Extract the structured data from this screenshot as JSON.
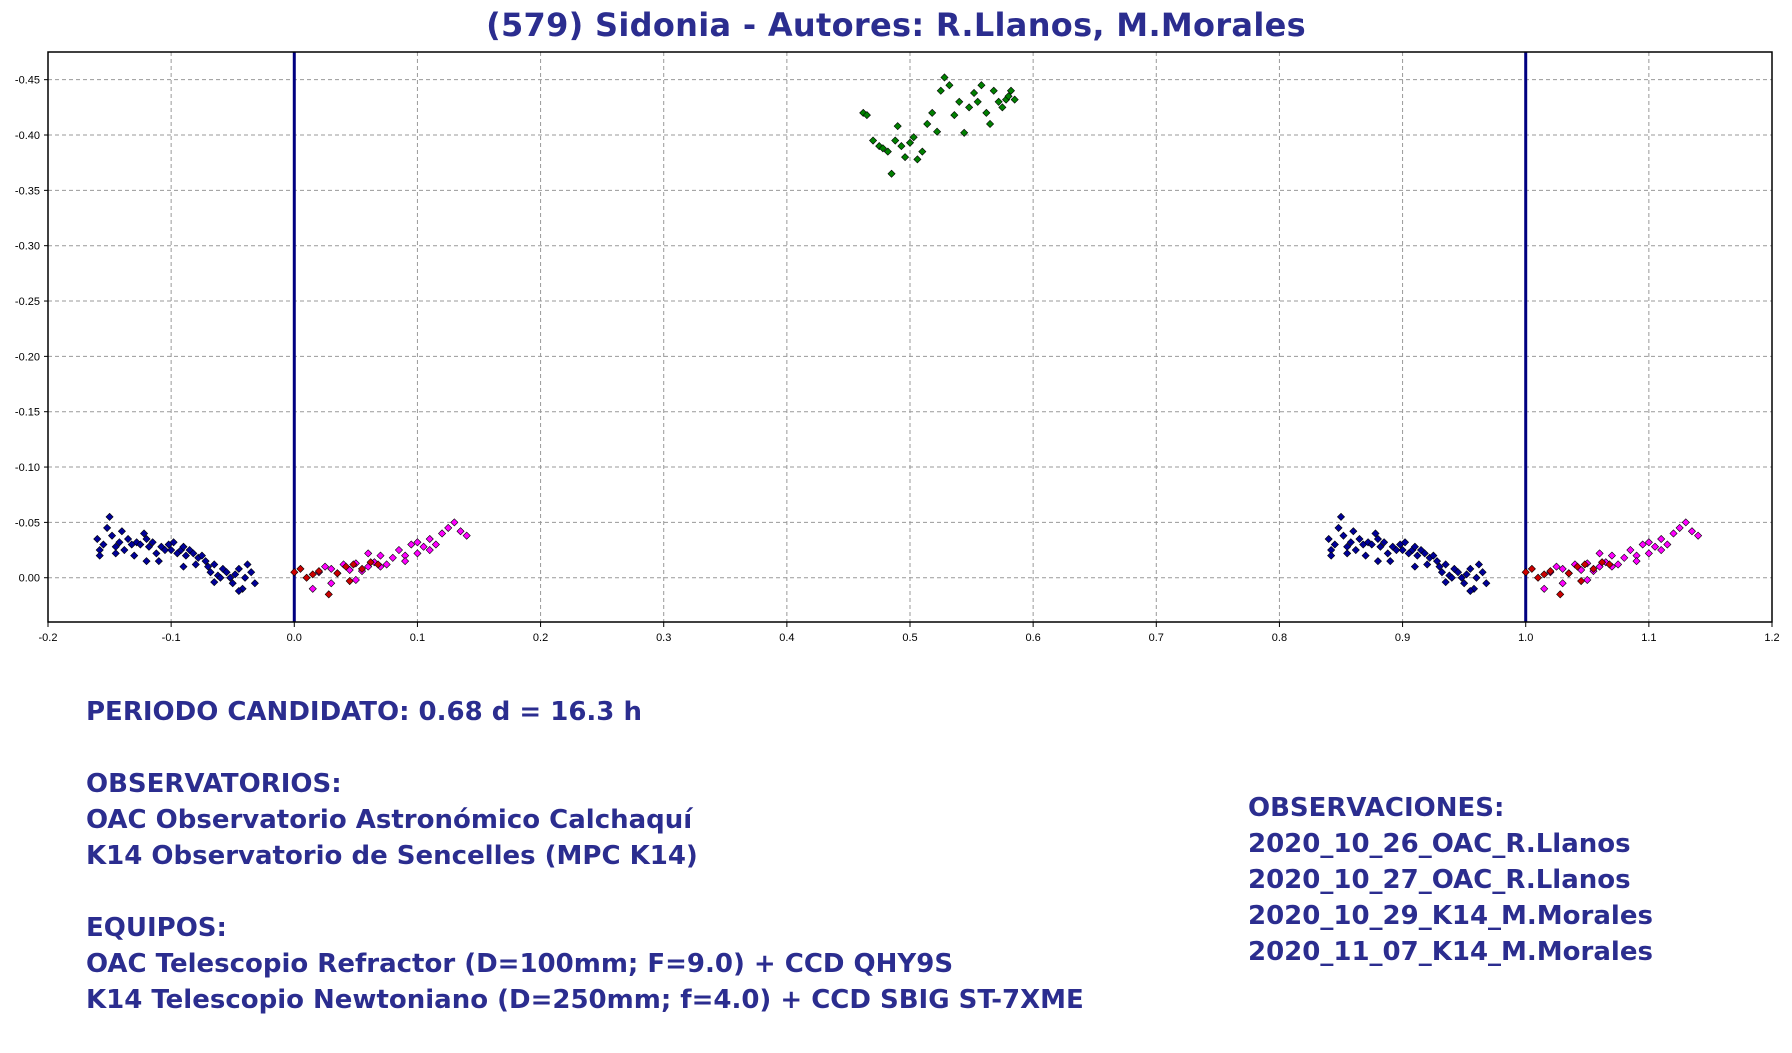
{
  "chart_data": {
    "type": "scatter",
    "title": "(579) Sidonia - Autores: R.Llanos, M.Morales",
    "xlabel": "",
    "ylabel": "",
    "xlim": [
      -0.2,
      1.2
    ],
    "ylim": [
      -0.475,
      0.04
    ],
    "y_inverted": true,
    "grid": true,
    "x_ticks": [
      "-0.2",
      "-0.1",
      "0.0",
      "0.1",
      "0.2",
      "0.3",
      "0.4",
      "0.5",
      "0.6",
      "0.7",
      "0.8",
      "0.9",
      "1.0",
      "1.1",
      "1.2"
    ],
    "y_ticks": [
      "-0.45",
      "-0.40",
      "-0.35",
      "-0.30",
      "-0.25",
      "-0.20",
      "-0.15",
      "-0.10",
      "-0.05",
      "0.00"
    ],
    "vertical_lines": [
      0.0,
      1.0
    ],
    "series": [
      {
        "name": "2020_10_26_OAC_R.Llanos",
        "color": "#ff00ff",
        "points": [
          [
            0.02,
            -0.005
          ],
          [
            0.025,
            -0.01
          ],
          [
            0.03,
            -0.008
          ],
          [
            0.035,
            -0.004
          ],
          [
            0.04,
            -0.012
          ],
          [
            0.045,
            -0.007
          ],
          [
            0.05,
            -0.013
          ],
          [
            0.055,
            -0.006
          ],
          [
            0.06,
            -0.01
          ],
          [
            0.065,
            -0.014
          ],
          [
            0.07,
            -0.02
          ],
          [
            0.075,
            -0.012
          ],
          [
            0.08,
            -0.018
          ],
          [
            0.085,
            -0.025
          ],
          [
            0.09,
            -0.02
          ],
          [
            0.095,
            -0.03
          ],
          [
            0.1,
            -0.022
          ],
          [
            0.105,
            -0.028
          ],
          [
            0.11,
            -0.035
          ],
          [
            0.115,
            -0.03
          ],
          [
            0.12,
            -0.04
          ],
          [
            0.125,
            -0.045
          ],
          [
            0.13,
            -0.05
          ],
          [
            0.135,
            -0.042
          ],
          [
            0.14,
            -0.038
          ],
          [
            0.015,
            0.01
          ],
          [
            0.03,
            0.005
          ],
          [
            0.05,
            0.002
          ],
          [
            0.07,
            -0.01
          ],
          [
            0.09,
            -0.015
          ],
          [
            0.11,
            -0.025
          ],
          [
            0.06,
            -0.022
          ],
          [
            0.1,
            -0.032
          ]
        ]
      },
      {
        "name": "2020_10_27_OAC_R.Llanos",
        "color": "#cc0000",
        "points": [
          [
            0.0,
            -0.005
          ],
          [
            0.005,
            -0.008
          ],
          [
            0.01,
            0.0
          ],
          [
            0.015,
            -0.003
          ],
          [
            0.02,
            -0.006
          ],
          [
            0.028,
            0.015
          ],
          [
            0.035,
            -0.004
          ],
          [
            0.042,
            -0.01
          ],
          [
            0.048,
            -0.012
          ],
          [
            0.055,
            -0.008
          ],
          [
            0.062,
            -0.014
          ],
          [
            0.045,
            0.003
          ],
          [
            0.068,
            -0.012
          ]
        ]
      },
      {
        "name": "2020_10_29_K14_M.Morales",
        "color": "#000099",
        "points": [
          [
            -0.16,
            -0.035
          ],
          [
            -0.158,
            -0.025
          ],
          [
            -0.155,
            -0.03
          ],
          [
            -0.152,
            -0.045
          ],
          [
            -0.15,
            -0.055
          ],
          [
            -0.148,
            -0.038
          ],
          [
            -0.145,
            -0.028
          ],
          [
            -0.142,
            -0.032
          ],
          [
            -0.14,
            -0.042
          ],
          [
            -0.138,
            -0.025
          ],
          [
            -0.135,
            -0.035
          ],
          [
            -0.132,
            -0.03
          ],
          [
            -0.13,
            -0.02
          ],
          [
            -0.128,
            -0.032
          ],
          [
            -0.125,
            -0.03
          ],
          [
            -0.122,
            -0.04
          ],
          [
            -0.12,
            -0.035
          ],
          [
            -0.118,
            -0.028
          ],
          [
            -0.115,
            -0.032
          ],
          [
            -0.112,
            -0.022
          ],
          [
            -0.11,
            -0.015
          ],
          [
            -0.108,
            -0.028
          ],
          [
            -0.105,
            -0.025
          ],
          [
            -0.102,
            -0.03
          ],
          [
            -0.1,
            -0.025
          ],
          [
            -0.098,
            -0.032
          ],
          [
            -0.095,
            -0.022
          ],
          [
            -0.092,
            -0.025
          ],
          [
            -0.09,
            -0.028
          ],
          [
            -0.088,
            -0.02
          ],
          [
            -0.085,
            -0.025
          ],
          [
            -0.082,
            -0.022
          ],
          [
            -0.08,
            -0.012
          ],
          [
            -0.078,
            -0.018
          ],
          [
            -0.075,
            -0.02
          ],
          [
            -0.072,
            -0.015
          ],
          [
            -0.07,
            -0.01
          ],
          [
            -0.068,
            -0.005
          ],
          [
            -0.065,
            -0.012
          ],
          [
            -0.062,
            -0.002
          ],
          [
            -0.06,
            0.0
          ],
          [
            -0.058,
            -0.008
          ],
          [
            -0.055,
            -0.005
          ],
          [
            -0.052,
            0.0
          ],
          [
            -0.05,
            0.005
          ],
          [
            -0.048,
            -0.003
          ],
          [
            -0.045,
            -0.008
          ],
          [
            -0.042,
            0.01
          ],
          [
            -0.04,
            0.0
          ],
          [
            -0.038,
            -0.012
          ],
          [
            -0.035,
            -0.005
          ],
          [
            -0.032,
            0.005
          ],
          [
            -0.158,
            -0.02
          ],
          [
            -0.12,
            -0.015
          ],
          [
            -0.145,
            -0.022
          ],
          [
            -0.09,
            -0.01
          ],
          [
            -0.065,
            0.004
          ],
          [
            -0.045,
            0.012
          ]
        ]
      },
      {
        "name": "2020_11_07_K14_M.Morales",
        "color": "#008000",
        "points": [
          [
            0.462,
            -0.42
          ],
          [
            0.465,
            -0.418
          ],
          [
            0.47,
            -0.395
          ],
          [
            0.475,
            -0.39
          ],
          [
            0.478,
            -0.388
          ],
          [
            0.482,
            -0.385
          ],
          [
            0.485,
            -0.365
          ],
          [
            0.488,
            -0.395
          ],
          [
            0.49,
            -0.408
          ],
          [
            0.493,
            -0.39
          ],
          [
            0.496,
            -0.38
          ],
          [
            0.5,
            -0.393
          ],
          [
            0.503,
            -0.398
          ],
          [
            0.506,
            -0.378
          ],
          [
            0.51,
            -0.385
          ],
          [
            0.514,
            -0.41
          ],
          [
            0.518,
            -0.42
          ],
          [
            0.522,
            -0.403
          ],
          [
            0.525,
            -0.44
          ],
          [
            0.528,
            -0.452
          ],
          [
            0.532,
            -0.445
          ],
          [
            0.536,
            -0.418
          ],
          [
            0.54,
            -0.43
          ],
          [
            0.544,
            -0.402
          ],
          [
            0.548,
            -0.425
          ],
          [
            0.552,
            -0.438
          ],
          [
            0.555,
            -0.43
          ],
          [
            0.558,
            -0.445
          ],
          [
            0.562,
            -0.42
          ],
          [
            0.565,
            -0.41
          ],
          [
            0.568,
            -0.44
          ],
          [
            0.572,
            -0.43
          ],
          [
            0.575,
            -0.425
          ],
          [
            0.578,
            -0.432
          ],
          [
            0.582,
            -0.44
          ],
          [
            0.585,
            -0.432
          ],
          [
            0.58,
            -0.435
          ]
        ]
      }
    ],
    "repeated_phase": "data repeated at phase + 1.0"
  },
  "info": {
    "period": "PERIODO CANDIDATO: 0.68 d = 16.3 h",
    "observatories_header": "OBSERVATORIOS:",
    "observatory_1": "OAC Observatorio Astronómico Calchaquí",
    "observatory_2": "K14 Observatorio de Sencelles (MPC K14)",
    "equipment_header": "EQUIPOS:",
    "equipment_1": "OAC Telescopio Refractor (D=100mm; F=9.0) + CCD QHY9S",
    "equipment_2": "K14 Telescopio Newtoniano (D=250mm; f=4.0) + CCD SBIG ST-7XME",
    "observations_header": "OBSERVACIONES:",
    "observations": [
      "2020_10_26_OAC_R.Llanos",
      "2020_10_27_OAC_R.Llanos",
      "2020_10_29_K14_M.Morales",
      "2020_11_07_K14_M.Morales"
    ]
  }
}
